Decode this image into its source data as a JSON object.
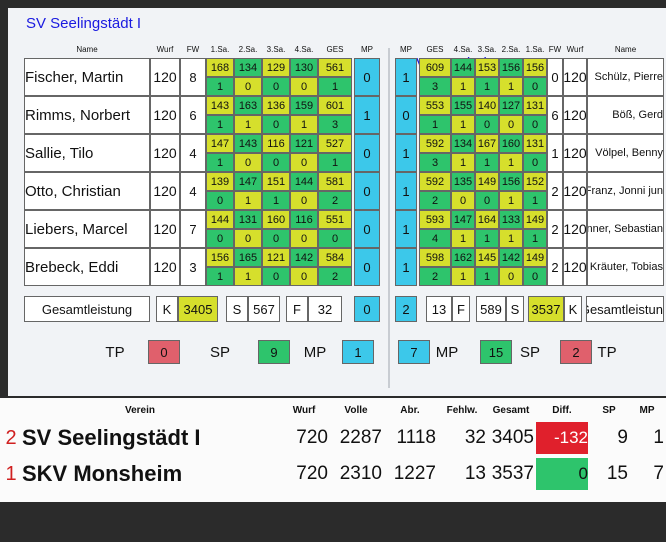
{
  "left": {
    "title": "SV Seelingstädt I",
    "headers": [
      "Name",
      "Wurf",
      "FW",
      "1.Sa.",
      "2.Sa.",
      "3.Sa.",
      "4.Sa.",
      "GES",
      "MP"
    ],
    "players": [
      {
        "name": "Fischer, Martin",
        "wurf": 120,
        "fw": 8,
        "pins": [
          168,
          134,
          129,
          130,
          561
        ],
        "points": [
          1,
          0,
          0,
          0,
          1
        ],
        "mp": 0
      },
      {
        "name": "Rimms, Norbert",
        "wurf": 120,
        "fw": 6,
        "pins": [
          143,
          163,
          136,
          159,
          601
        ],
        "points": [
          1,
          1,
          0,
          1,
          3
        ],
        "mp": 1
      },
      {
        "name": "Sallie, Tilo",
        "wurf": 120,
        "fw": 4,
        "pins": [
          147,
          143,
          116,
          121,
          527
        ],
        "points": [
          1,
          0,
          0,
          0,
          1
        ],
        "mp": 0
      },
      {
        "name": "Otto, Christian",
        "wurf": 120,
        "fw": 4,
        "pins": [
          139,
          147,
          151,
          144,
          581
        ],
        "points": [
          0,
          1,
          1,
          0,
          2
        ],
        "mp": 0
      },
      {
        "name": "Liebers, Marcel",
        "wurf": 120,
        "fw": 7,
        "pins": [
          144,
          131,
          160,
          116,
          551
        ],
        "points": [
          0,
          0,
          0,
          0,
          0
        ],
        "mp": 0
      },
      {
        "name": "Brebeck, Eddi",
        "wurf": 120,
        "fw": 3,
        "pins": [
          156,
          165,
          121,
          142,
          584
        ],
        "points": [
          1,
          1,
          0,
          0,
          2
        ],
        "mp": 0
      }
    ],
    "total": [
      "Gesamtleistung",
      "K",
      3405,
      "S",
      567,
      "F",
      32,
      0
    ],
    "summary": [
      {
        "label": "TP",
        "value": 0
      },
      {
        "label": "SP",
        "value": 9
      },
      {
        "label": "MP",
        "value": 1
      }
    ]
  },
  "right": {
    "title": "SKV Monsheim",
    "headers": [
      "MP",
      "GES",
      "4.Sa.",
      "3.Sa.",
      "2.Sa.",
      "1.Sa.",
      "FW",
      "Wurf",
      "Name"
    ],
    "players": [
      {
        "name": "Schülz, Pierre",
        "wurf": 120,
        "fw": 0,
        "pins": [
          609,
          144,
          153,
          156,
          156
        ],
        "points": [
          3,
          1,
          1,
          1,
          0
        ],
        "mp": 1
      },
      {
        "name": "Böß, Gerd",
        "wurf": 120,
        "fw": 6,
        "pins": [
          553,
          155,
          140,
          127,
          131
        ],
        "points": [
          1,
          1,
          0,
          0,
          0
        ],
        "mp": 0
      },
      {
        "name": "Völpel, Benny",
        "wurf": 120,
        "fw": 1,
        "pins": [
          592,
          134,
          167,
          160,
          131
        ],
        "points": [
          3,
          1,
          1,
          1,
          0
        ],
        "mp": 1
      },
      {
        "name": "Franz, Jonni jun",
        "wurf": 120,
        "fw": 2,
        "pins": [
          592,
          135,
          149,
          156,
          152
        ],
        "points": [
          2,
          0,
          0,
          1,
          1
        ],
        "mp": 1
      },
      {
        "name": "nner, Sebastian",
        "wurf": 120,
        "fw": 2,
        "pins": [
          593,
          147,
          164,
          133,
          149
        ],
        "points": [
          4,
          1,
          1,
          1,
          1
        ],
        "mp": 1
      },
      {
        "name": "Kräuter, Tobias",
        "wurf": 120,
        "fw": 2,
        "pins": [
          598,
          162,
          145,
          142,
          149
        ],
        "points": [
          2,
          1,
          1,
          0,
          0
        ],
        "mp": 1
      }
    ],
    "total": [
      2,
      13,
      "F",
      589,
      "S",
      3537,
      "K",
      "Gesamtleistung"
    ],
    "summary": [
      {
        "label": "MP",
        "value": 7
      },
      {
        "label": "SP",
        "value": 15
      },
      {
        "label": "TP",
        "value": 2
      }
    ]
  },
  "results": {
    "headers": [
      "Verein",
      "Wurf",
      "Volle",
      "Abr.",
      "Fehlw.",
      "Gesamt",
      "Diff.",
      "SP",
      "MP"
    ],
    "rows": [
      {
        "rank": 2,
        "team": "SV Seelingstädt I",
        "values": [
          720,
          2287,
          1118,
          32,
          3405,
          -132,
          9,
          1
        ]
      },
      {
        "rank": 1,
        "team": "SKV Monsheim",
        "values": [
          720,
          2310,
          1227,
          13,
          3537,
          0,
          15,
          7
        ]
      }
    ]
  }
}
